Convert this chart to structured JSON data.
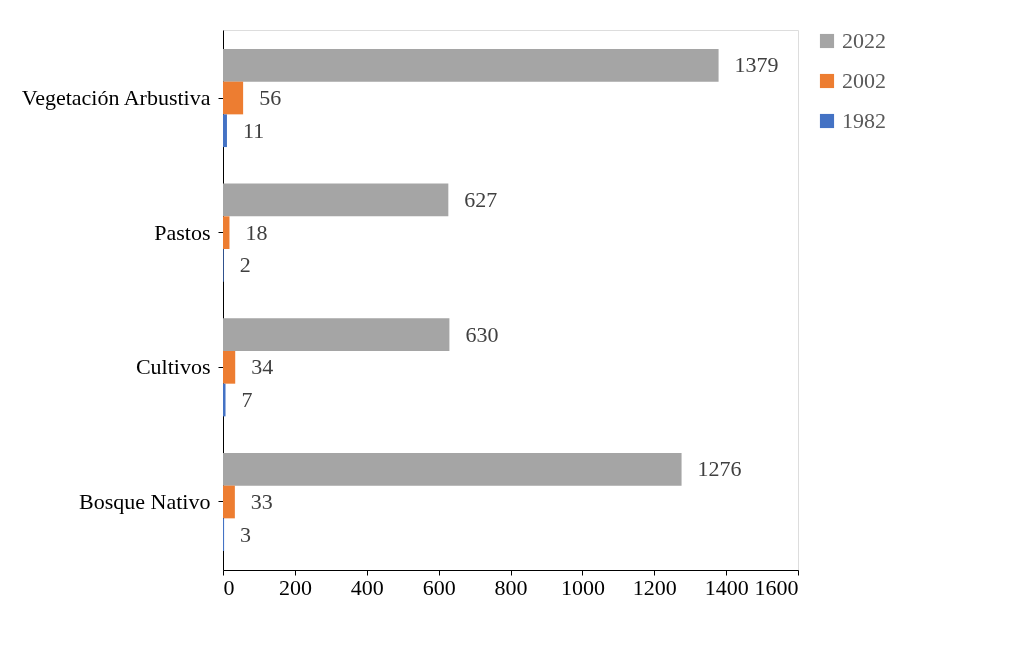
{
  "chart_data": {
    "type": "bar",
    "orientation": "horizontal",
    "categories": [
      "Vegetación Arbustiva",
      "Pastos",
      "Cultivos",
      "Bosque Nativo"
    ],
    "series": [
      {
        "name": "2022",
        "color": "#a5a5a5",
        "values": [
          1379,
          627,
          630,
          1276
        ]
      },
      {
        "name": "2002",
        "color": "#ed7d31",
        "values": [
          56,
          18,
          34,
          33
        ]
      },
      {
        "name": "1982",
        "color": "#4472c4",
        "values": [
          11,
          2,
          7,
          3
        ]
      }
    ],
    "xlim": [
      0,
      1600
    ],
    "xticks": [
      0,
      200,
      400,
      600,
      800,
      1000,
      1200,
      1400,
      1600
    ],
    "data_labels": true,
    "legend": "right",
    "grid": false
  }
}
